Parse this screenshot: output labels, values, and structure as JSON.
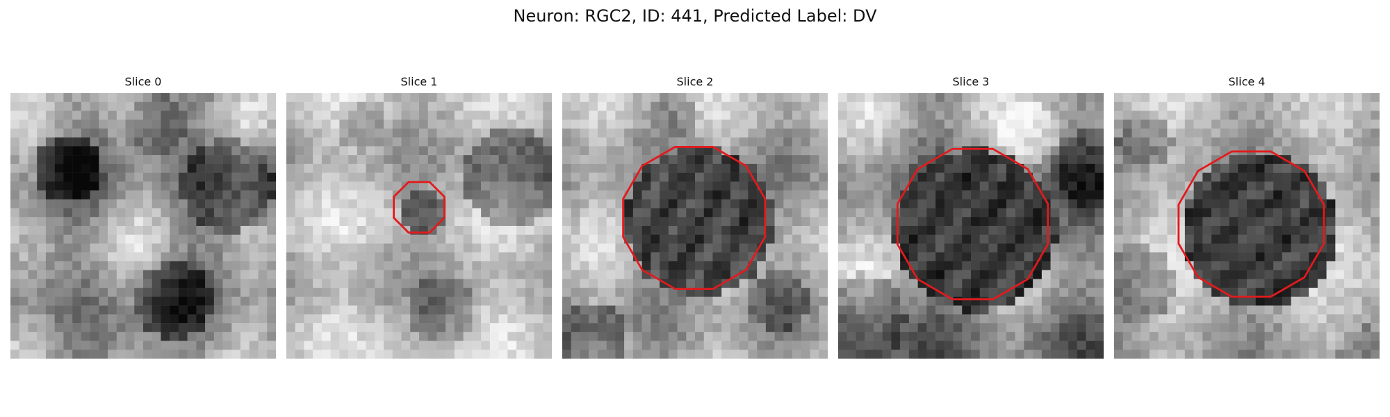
{
  "figure": {
    "title": "Neuron: RGC2, ID: 441, Predicted Label: DV",
    "image_style": "grayscale 30x30 pixel microscopy slices",
    "contour_color": "#e31a1c"
  },
  "slices": [
    {
      "label": "Slice 0",
      "description": "textured gray field with darker blotches"
    },
    {
      "label": "Slice 1",
      "description": "bright field with a small outlined dark region"
    },
    {
      "label": "Slice 2",
      "description": "bright field with a larger outlined dark round region"
    },
    {
      "label": "Slice 3",
      "description": "bright field with the largest outlined dark round region"
    },
    {
      "label": "Slice 4",
      "description": "bright field with a medium-large outlined dark round region"
    }
  ]
}
